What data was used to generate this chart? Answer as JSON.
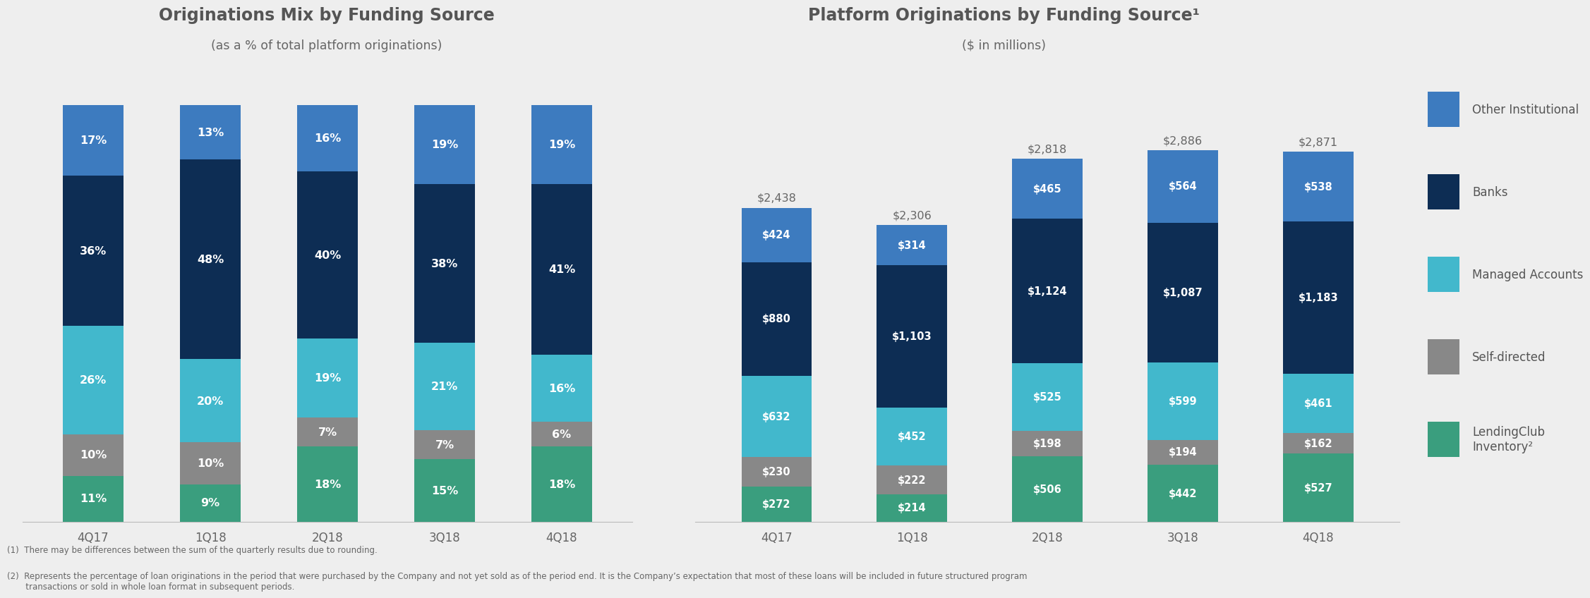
{
  "background_color": "#eeeeee",
  "left_title": "Originations Mix by Funding Source",
  "left_subtitle": "(as a % of total platform originations)",
  "right_title": "Platform Originations by Funding Source¹",
  "right_subtitle": "($ in millions)",
  "categories": [
    "4Q17",
    "1Q18",
    "2Q18",
    "3Q18",
    "4Q18"
  ],
  "colors": {
    "lc_inventory": "#3a9e7e",
    "self_directed": "#888888",
    "managed_accounts": "#42b8cc",
    "banks": "#0d2d54",
    "other_institutional": "#3d7bbf"
  },
  "pct_data": {
    "lc_inventory": [
      11,
      9,
      18,
      15,
      18
    ],
    "self_directed": [
      10,
      10,
      7,
      7,
      6
    ],
    "managed_accounts": [
      26,
      20,
      19,
      21,
      16
    ],
    "banks": [
      36,
      48,
      40,
      38,
      41
    ],
    "other_institutional": [
      17,
      13,
      16,
      19,
      19
    ]
  },
  "abs_data": {
    "lc_inventory": [
      272,
      214,
      506,
      442,
      527
    ],
    "self_directed": [
      230,
      222,
      198,
      194,
      162
    ],
    "managed_accounts": [
      632,
      452,
      525,
      599,
      461
    ],
    "banks": [
      880,
      1103,
      1124,
      1087,
      1183
    ],
    "other_institutional": [
      424,
      314,
      465,
      564,
      538
    ]
  },
  "abs_totals": [
    "$2,438",
    "$2,306",
    "$2,818",
    "$2,886",
    "$2,871"
  ],
  "legend_labels": [
    "Other Institutional",
    "Banks",
    "Managed Accounts",
    "Self-directed",
    "LendingClub\nInventory²"
  ],
  "footnote1": "(1)  There may be differences between the sum of the quarterly results due to rounding.",
  "footnote2": "(2)  Represents the percentage of loan originations in the period that were purchased by the Company and not yet sold as of the period end. It is the Company’s expectation that most of these loans will be included in future structured program\n       transactions or sold in whole loan format in subsequent periods."
}
